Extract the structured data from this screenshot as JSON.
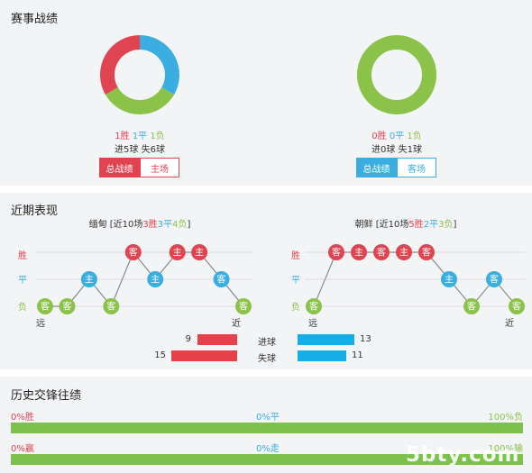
{
  "sections": {
    "record_title": "赛事战绩",
    "recent_title": "近期表现",
    "history_title": "历史交锋往绩"
  },
  "record": {
    "home": {
      "wins": "1胜",
      "draws": "1平",
      "losses": "1负",
      "goals": "进5球 失6球",
      "donut": [
        {
          "label": "胜",
          "value": 1,
          "color": "#3aaee0"
        },
        {
          "label": "平",
          "value": 1,
          "color": "#8bc34a"
        },
        {
          "label": "负",
          "value": 1,
          "color": "#e04450"
        }
      ],
      "btn_total": "总战绩",
      "btn_side": "主场"
    },
    "away": {
      "wins": "0胜",
      "draws": "0平",
      "losses": "1负",
      "goals": "进0球 失1球",
      "donut": [
        {
          "label": "负",
          "value": 1,
          "color": "#8bc34a"
        }
      ],
      "btn_total": "总战绩",
      "btn_side": "客场"
    }
  },
  "recent": {
    "y_labels": [
      "胜",
      "平",
      "负"
    ],
    "home": {
      "team": "缅甸",
      "summary_prefix": " [近10场",
      "w": "3胜",
      "d": "3平",
      "l": "4负",
      "summary_suffix": "]",
      "far": "远",
      "near": "近",
      "results": [
        {
          "label": "客",
          "level": 0
        },
        {
          "label": "客",
          "level": 0
        },
        {
          "label": "主",
          "level": 1
        },
        {
          "label": "客",
          "level": 0
        },
        {
          "label": "客",
          "level": 2
        },
        {
          "label": "主",
          "level": 1
        },
        {
          "label": "主",
          "level": 2
        },
        {
          "label": "主",
          "level": 2
        },
        {
          "label": "客",
          "level": 1
        },
        {
          "label": "客",
          "level": 0
        }
      ]
    },
    "away": {
      "team": "朝鲜",
      "summary_prefix": " [近10场",
      "w": "5胜",
      "d": "2平",
      "l": "3负",
      "summary_suffix": "]",
      "far": "远",
      "near": "近",
      "results": [
        {
          "label": "客",
          "level": 0
        },
        {
          "label": "客",
          "level": 2
        },
        {
          "label": "主",
          "level": 2
        },
        {
          "label": "客",
          "level": 2
        },
        {
          "label": "主",
          "level": 2
        },
        {
          "label": "客",
          "level": 2
        },
        {
          "label": "主",
          "level": 1
        },
        {
          "label": "客",
          "level": 0
        },
        {
          "label": "客",
          "level": 1
        },
        {
          "label": "客",
          "level": 0
        }
      ]
    },
    "stats": {
      "scored_label": "进球",
      "conceded_label": "失球",
      "home_scored": 9,
      "home_conceded": 15,
      "away_scored": 13,
      "away_conceded": 11
    }
  },
  "history": {
    "row1": {
      "left": "0%胜",
      "mid": "0%平",
      "right": "100%负"
    },
    "row2": {
      "left": "0%赢",
      "mid": "0%走",
      "right": "100%输"
    }
  },
  "watermark": "5bty.com",
  "colors": {
    "red": "#e04450",
    "blue": "#3aaee0",
    "green": "#8bc34a"
  }
}
